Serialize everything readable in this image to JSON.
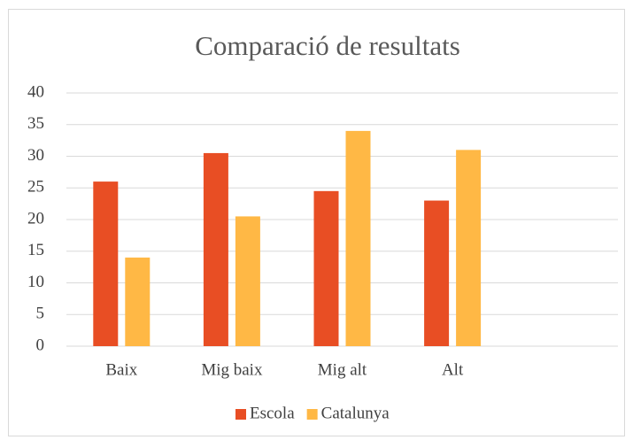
{
  "chart_data": {
    "type": "bar",
    "title": "Comparació de resultats",
    "categories": [
      "Baix",
      "Mig baix",
      "Mig alt",
      "Alt",
      null
    ],
    "series": [
      {
        "name": "Escola",
        "color": "#e84e24",
        "values": [
          26,
          30.5,
          24.5,
          23,
          null
        ]
      },
      {
        "name": "Catalunya",
        "color": "#ffb845",
        "values": [
          14,
          20.5,
          34,
          31,
          null
        ]
      }
    ],
    "ylim": [
      0,
      40
    ],
    "yticks": [
      0,
      5,
      10,
      15,
      20,
      25,
      30,
      35,
      40
    ],
    "grid": true,
    "legend": "bottom"
  }
}
